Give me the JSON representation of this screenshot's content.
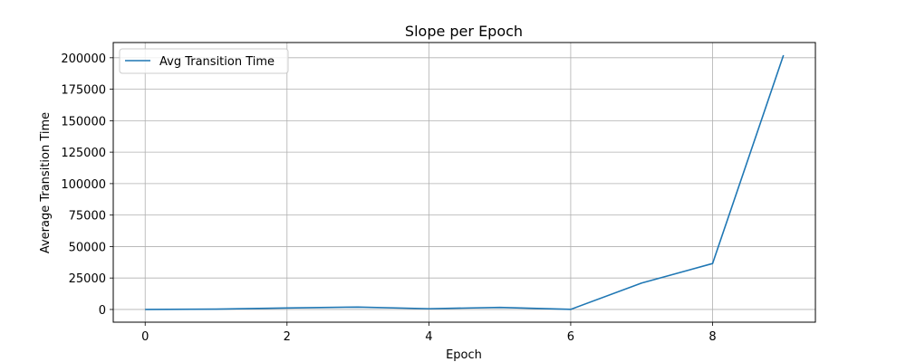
{
  "chart_data": {
    "type": "line",
    "title": "Slope per Epoch",
    "xlabel": "Epoch",
    "ylabel": "Average Transition Time",
    "x": [
      0,
      1,
      2,
      3,
      4,
      5,
      6,
      7,
      8,
      9
    ],
    "series": [
      {
        "name": "Avg Transition Time",
        "color": "#1f77b4",
        "values": [
          0,
          300,
          1200,
          1900,
          600,
          1600,
          100,
          21000,
          36500,
          202000
        ]
      }
    ],
    "xlim": [
      -0.45,
      9.45
    ],
    "ylim": [
      -10100,
      212100
    ],
    "xticks": [
      0,
      2,
      4,
      6,
      8
    ],
    "yticks": [
      0,
      25000,
      50000,
      75000,
      100000,
      125000,
      150000,
      175000,
      200000
    ],
    "grid": true,
    "legend": "upper left"
  }
}
